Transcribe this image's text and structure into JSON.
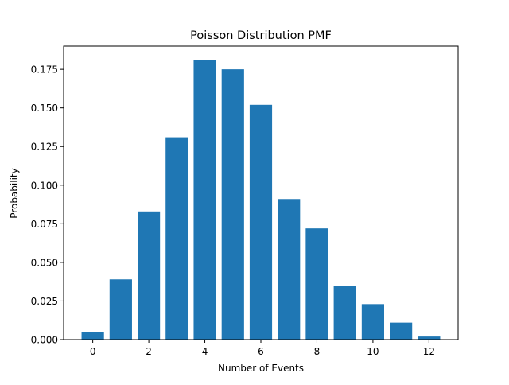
{
  "chart_data": {
    "type": "bar",
    "title": "Poisson Distribution PMF",
    "xlabel": "Number of Events",
    "ylabel": "Probability",
    "categories": [
      0,
      1,
      2,
      3,
      4,
      5,
      6,
      7,
      8,
      9,
      10,
      11,
      12
    ],
    "values": [
      0.005,
      0.039,
      0.083,
      0.131,
      0.181,
      0.175,
      0.152,
      0.091,
      0.072,
      0.035,
      0.023,
      0.011,
      0.002
    ],
    "bar_width": 0.8,
    "color": "#1f77b4",
    "xlim": [
      -1.04,
      13.04
    ],
    "ylim": [
      0,
      0.19
    ],
    "xticks": [
      0,
      2,
      4,
      6,
      8,
      10,
      12
    ],
    "xtick_labels": [
      "0",
      "2",
      "4",
      "6",
      "8",
      "10",
      "12"
    ],
    "yticks": [
      0,
      0.025,
      0.05,
      0.075,
      0.1,
      0.125,
      0.15,
      0.175
    ],
    "ytick_labels": [
      "0.000",
      "0.025",
      "0.050",
      "0.075",
      "0.100",
      "0.125",
      "0.150",
      "0.175"
    ],
    "grid": false,
    "legend": null
  }
}
